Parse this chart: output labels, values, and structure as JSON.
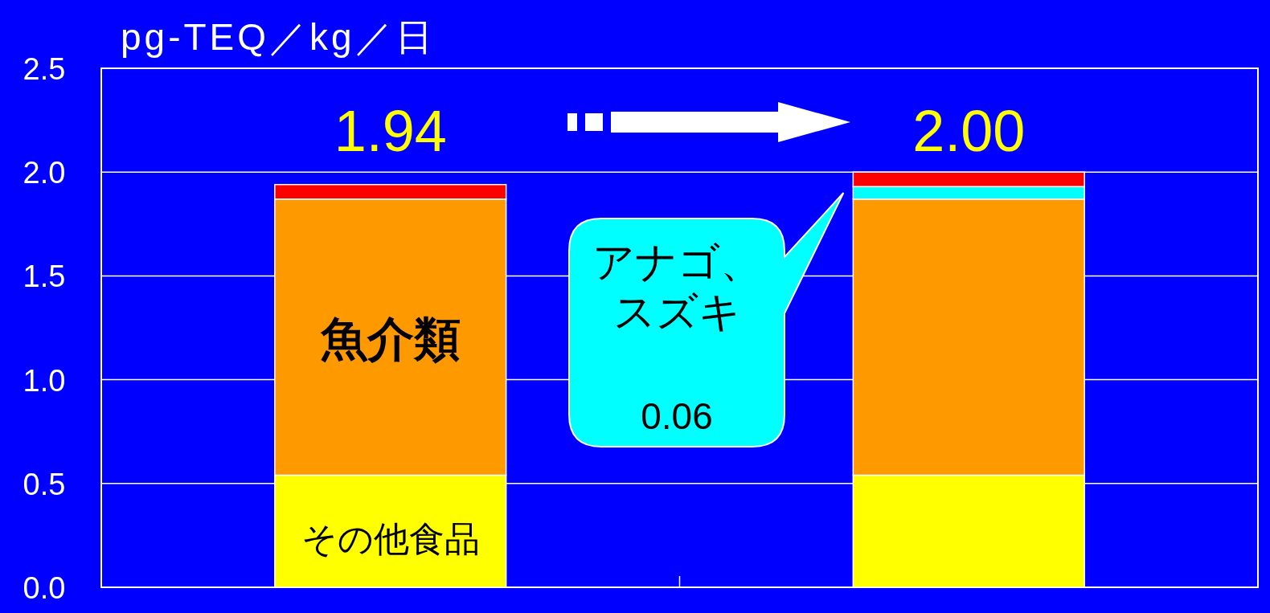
{
  "chart_data": {
    "type": "bar",
    "stacked": true,
    "ylabel": "pg-TEQ／kg／日",
    "categories": [
      null,
      null
    ],
    "series": [
      {
        "name": "その他食品",
        "color": "#ffff00",
        "values": [
          0.54,
          0.54
        ]
      },
      {
        "name": "魚介類",
        "color": "#ff9900",
        "values": [
          1.33,
          1.33
        ]
      },
      {
        "color": "#00ffff",
        "values": [
          null,
          0.06
        ]
      },
      {
        "color": "#ff0000",
        "values": [
          0.07,
          0.07
        ]
      }
    ],
    "totals": [
      "1.94",
      "2.00"
    ],
    "annotations": [
      "アナゴ、スズキ",
      "0.06"
    ],
    "ylim": [
      0,
      2.5
    ],
    "yticks": [
      {
        "value": 0,
        "label": "0.0"
      },
      {
        "value": 0.5,
        "label": "0.5"
      },
      {
        "value": 1,
        "label": "1.0"
      },
      {
        "value": 1.5,
        "label": "1.5"
      },
      {
        "value": 2,
        "label": "2.0"
      },
      {
        "value": 2.5,
        "label": "2.5"
      }
    ],
    "grid": "y",
    "legend": false
  }
}
